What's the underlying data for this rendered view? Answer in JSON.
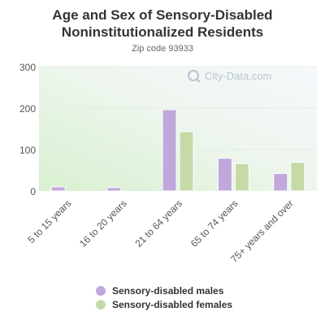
{
  "chart_data": {
    "type": "bar",
    "title": "Age and Sex of Sensory-Disabled Noninstitutionalized Residents",
    "subtitle": "Zip code 93933",
    "watermark": "City-Data.com",
    "categories": [
      "5 to 15 years",
      "16 to 20 years",
      "21 to 64 years",
      "65 to 74 years",
      "75+ years and over"
    ],
    "series": [
      {
        "name": "Sensory-disabled males",
        "color": "#c0a8dc",
        "values": [
          10,
          8,
          196,
          79,
          42
        ]
      },
      {
        "name": "Sensory-disabled females",
        "color": "#c6daa8",
        "values": [
          0,
          0,
          143,
          66,
          69
        ]
      }
    ],
    "ylim": [
      0,
      300
    ],
    "yticks": [
      "0",
      "100",
      "200",
      "300"
    ],
    "grid": true,
    "legend_position": "bottom"
  }
}
